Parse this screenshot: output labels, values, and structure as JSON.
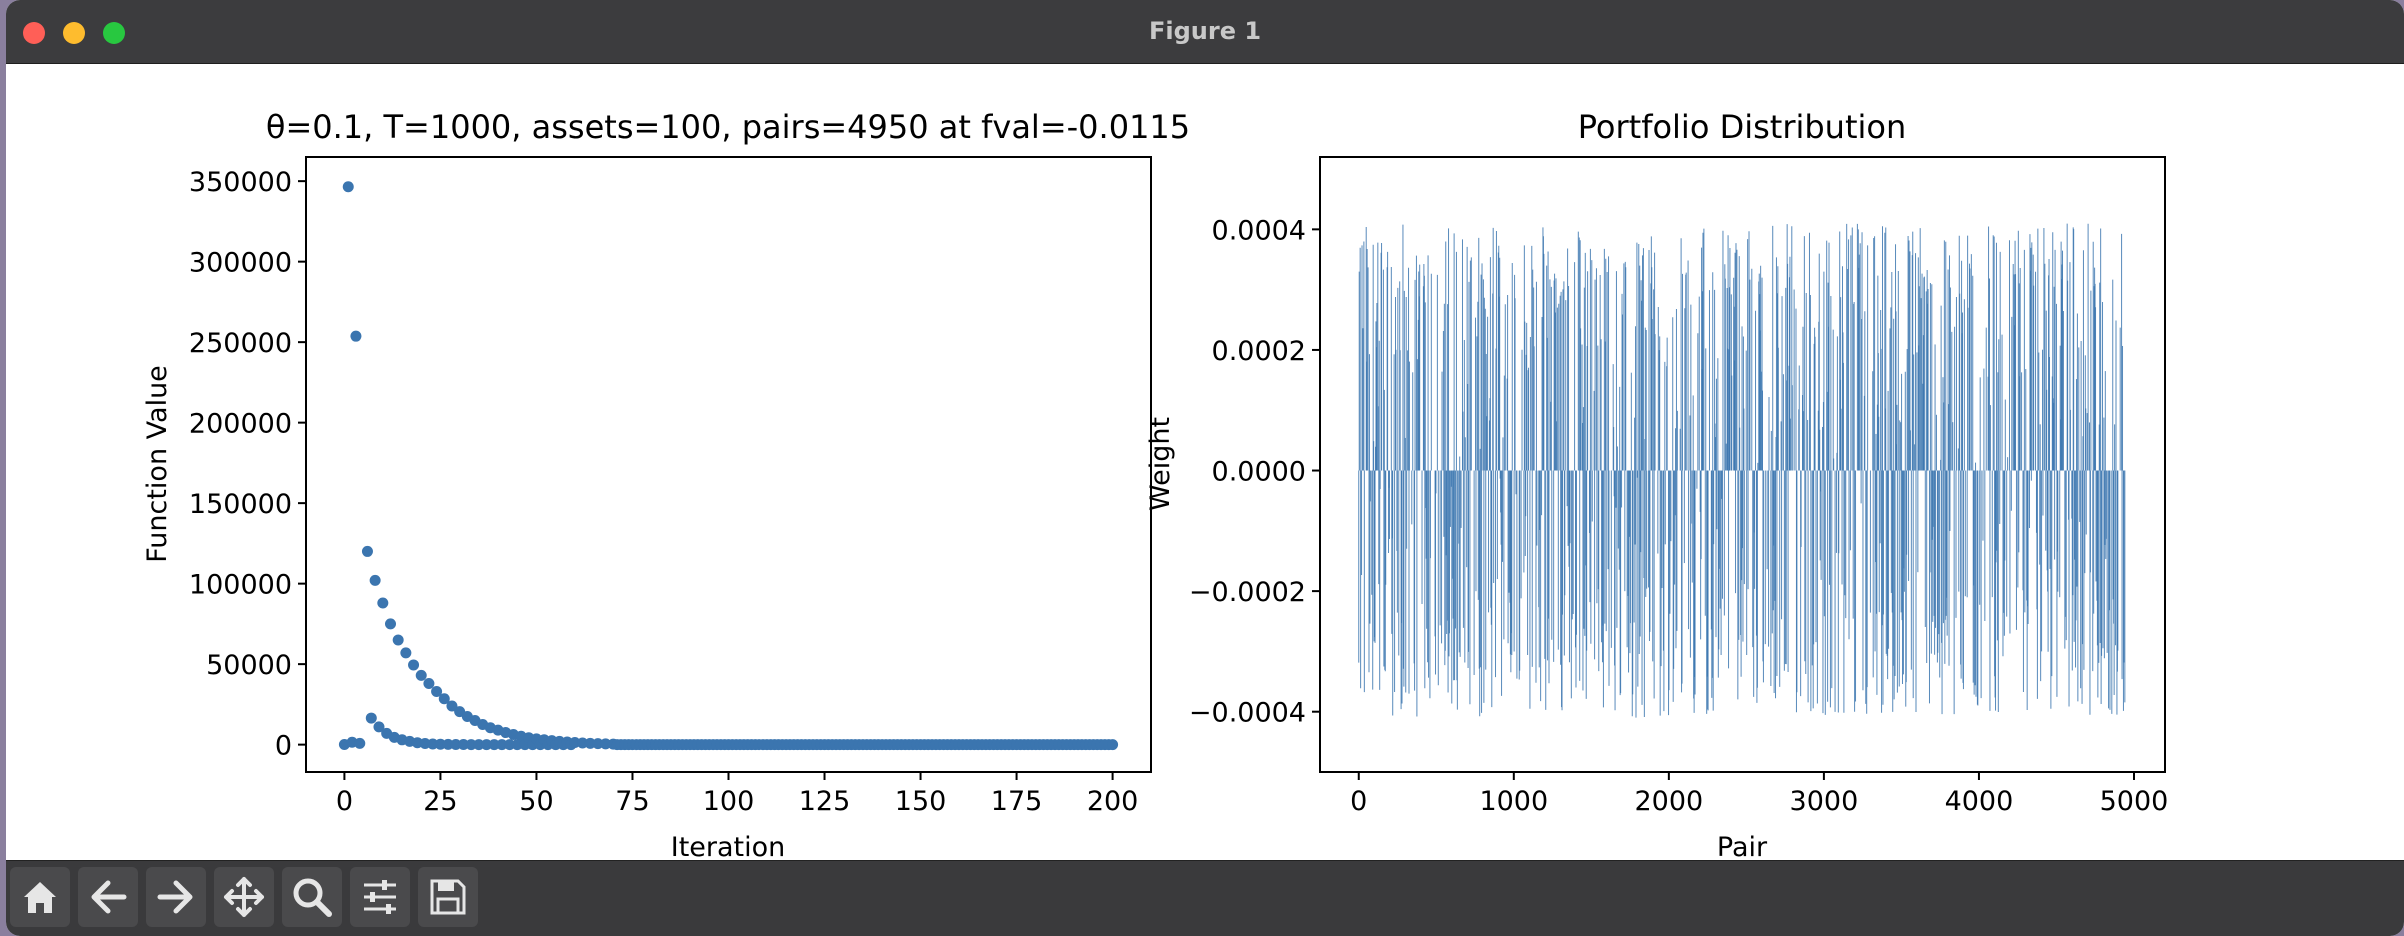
{
  "window": {
    "title": "Figure 1"
  },
  "toolbar": {
    "buttons": [
      {
        "icon": "home-icon"
      },
      {
        "icon": "back-arrow-icon"
      },
      {
        "icon": "forward-arrow-icon"
      },
      {
        "icon": "pan-move-icon"
      },
      {
        "icon": "zoom-magnifier-icon"
      },
      {
        "icon": "subplots-sliders-icon"
      },
      {
        "icon": "save-disk-icon"
      }
    ]
  },
  "chart_data": [
    {
      "type": "scatter",
      "title": "θ=0.1, T=1000, assets=100, pairs=4950 at fval=-0.0115",
      "xlabel": "Iteration",
      "ylabel": "Function Value",
      "xlim": [
        -10,
        210
      ],
      "ylim": [
        -17000,
        365000
      ],
      "xticks": [
        0,
        25,
        50,
        75,
        100,
        125,
        150,
        175,
        200
      ],
      "yticks": [
        0,
        50000,
        100000,
        150000,
        200000,
        250000,
        300000,
        350000
      ],
      "color": "#3b75af",
      "series": [
        {
          "name": "",
          "points_explicit": [
            [
              0,
              100
            ],
            [
              1,
              346500
            ],
            [
              2,
              1500
            ],
            [
              3,
              253700
            ],
            [
              4,
              800
            ],
            [
              6,
              120000
            ],
            [
              7,
              16500
            ],
            [
              8,
              102000
            ],
            [
              9,
              11000
            ],
            [
              10,
              88000
            ],
            [
              11,
              7000
            ],
            [
              12,
              75000
            ],
            [
              13,
              4500
            ],
            [
              14,
              65000
            ],
            [
              15,
              3000
            ],
            [
              16,
              57000
            ],
            [
              17,
              2000
            ],
            [
              18,
              49500
            ],
            [
              19,
              1200
            ],
            [
              20,
              43000
            ],
            [
              21,
              700
            ],
            [
              22,
              38000
            ],
            [
              23,
              400
            ],
            [
              24,
              33000
            ],
            [
              25,
              250
            ],
            [
              26,
              28500
            ],
            [
              27,
              150
            ],
            [
              28,
              24000
            ],
            [
              29,
              100
            ],
            [
              30,
              20500
            ],
            [
              31,
              60
            ],
            [
              32,
              17500
            ],
            [
              33,
              40
            ],
            [
              34,
              15000
            ],
            [
              35,
              25
            ],
            [
              36,
              12500
            ],
            [
              37,
              15
            ],
            [
              38,
              10500
            ],
            [
              39,
              10
            ],
            [
              40,
              9000
            ],
            [
              41,
              8
            ],
            [
              42,
              7500
            ],
            [
              43,
              5
            ],
            [
              44,
              6300
            ],
            [
              45,
              4
            ],
            [
              46,
              5200
            ],
            [
              47,
              3
            ],
            [
              48,
              4300
            ],
            [
              49,
              2
            ],
            [
              50,
              3600
            ],
            [
              51,
              2
            ],
            [
              52,
              3000
            ],
            [
              53,
              1
            ],
            [
              54,
              2500
            ],
            [
              55,
              1
            ],
            [
              56,
              2000
            ],
            [
              57,
              1
            ],
            [
              58,
              1600
            ],
            [
              59,
              1
            ],
            [
              60,
              1300
            ],
            [
              62,
              1000
            ],
            [
              64,
              800
            ],
            [
              66,
              600
            ],
            [
              68,
              450
            ],
            [
              70,
              350
            ]
          ],
          "baseline_points": {
            "x_from": 71,
            "x_to": 200,
            "step": 1,
            "y": 0
          }
        }
      ]
    },
    {
      "type": "bar",
      "title": "Portfolio Distribution",
      "xlabel": "Pair",
      "ylabel": "Weight",
      "xlim": [
        -250,
        5200
      ],
      "ylim": [
        -0.0005,
        0.00052
      ],
      "xticks": [
        0,
        1000,
        2000,
        3000,
        4000,
        5000
      ],
      "yticks": [
        -0.0004,
        -0.0002,
        0.0,
        0.0002,
        0.0004
      ],
      "ytick_labels": [
        "−0.0004",
        "−0.0002",
        "0.0000",
        "0.0002",
        "0.0004"
      ],
      "color": "#3b75af",
      "n_pairs": 4950,
      "amplitude_range": [
        -0.00041,
        0.00041
      ]
    }
  ]
}
